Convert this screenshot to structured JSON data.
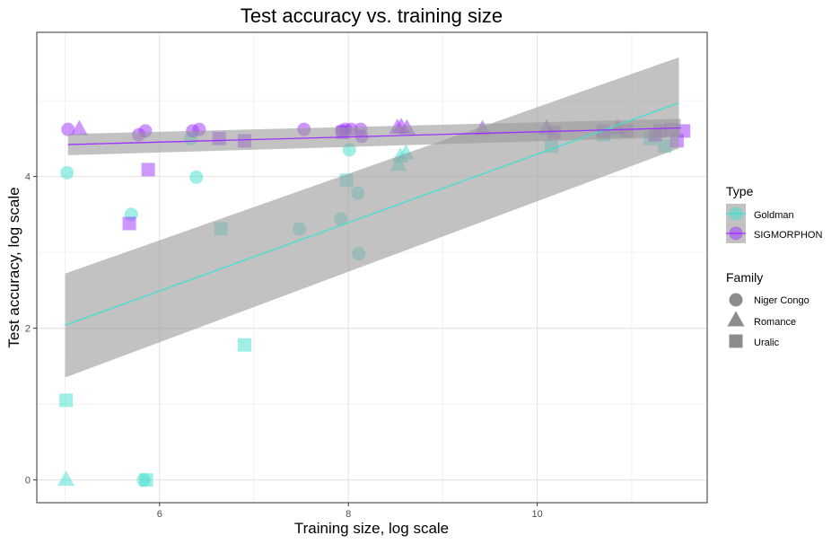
{
  "chart_data": {
    "type": "scatter",
    "title": "Test accuracy vs. training size",
    "xlabel": "Training size, log scale",
    "ylabel": "Test accuracy, log scale",
    "xlim": [
      4.7,
      11.8
    ],
    "ylim": [
      -0.3,
      5.9
    ],
    "x_ticks": [
      6,
      8,
      10
    ],
    "y_ticks": [
      0,
      2,
      4
    ],
    "grid": true,
    "legend": {
      "position": "right",
      "type_title": "Type",
      "type_entries": [
        {
          "name": "Goldman",
          "color": "#40E0D0"
        },
        {
          "name": "SIGMORPHON",
          "color": "#9B30FF"
        }
      ],
      "family_title": "Family",
      "family_entries": [
        {
          "name": "Niger Congo",
          "shape": "circle"
        },
        {
          "name": "Romance",
          "shape": "triangle"
        },
        {
          "name": "Uralic",
          "shape": "square"
        }
      ]
    },
    "series": [
      {
        "name": "Goldman",
        "color": "#40E0D0",
        "points": [
          {
            "x": 5.02,
            "y": 4.05,
            "family": "Niger Congo"
          },
          {
            "x": 5.7,
            "y": 3.5,
            "family": "Niger Congo"
          },
          {
            "x": 5.83,
            "y": 0.0,
            "family": "Niger Congo"
          },
          {
            "x": 6.33,
            "y": 4.5,
            "family": "Niger Congo"
          },
          {
            "x": 6.39,
            "y": 3.99,
            "family": "Niger Congo"
          },
          {
            "x": 7.48,
            "y": 3.31,
            "family": "Niger Congo"
          },
          {
            "x": 7.92,
            "y": 3.44,
            "family": "Niger Congo"
          },
          {
            "x": 8.01,
            "y": 4.35,
            "family": "Niger Congo"
          },
          {
            "x": 8.1,
            "y": 3.78,
            "family": "Niger Congo"
          },
          {
            "x": 8.11,
            "y": 2.98,
            "family": "Niger Congo"
          },
          {
            "x": 5.01,
            "y": 0.0,
            "family": "Romance"
          },
          {
            "x": 8.53,
            "y": 4.15,
            "family": "Romance"
          },
          {
            "x": 8.55,
            "y": 4.26,
            "family": "Romance"
          },
          {
            "x": 8.61,
            "y": 4.3,
            "family": "Romance"
          },
          {
            "x": 10.85,
            "y": 4.6,
            "family": "Romance"
          },
          {
            "x": 5.01,
            "y": 1.05,
            "family": "Uralic"
          },
          {
            "x": 5.86,
            "y": 0.0,
            "family": "Uralic"
          },
          {
            "x": 6.65,
            "y": 3.31,
            "family": "Uralic"
          },
          {
            "x": 6.9,
            "y": 1.78,
            "family": "Uralic"
          },
          {
            "x": 7.98,
            "y": 3.95,
            "family": "Uralic"
          },
          {
            "x": 10.15,
            "y": 4.4,
            "family": "Uralic"
          },
          {
            "x": 10.7,
            "y": 4.55,
            "family": "Uralic"
          },
          {
            "x": 11.2,
            "y": 4.5,
            "family": "Uralic"
          },
          {
            "x": 11.35,
            "y": 4.4,
            "family": "Uralic"
          }
        ],
        "fit": {
          "x": [
            5.0,
            11.5
          ],
          "y": [
            2.04,
            4.97
          ],
          "ci_low": [
            1.35,
            4.37
          ],
          "ci_high": [
            2.72,
            5.57
          ]
        }
      },
      {
        "name": "SIGMORPHON",
        "color": "#9B30FF",
        "points": [
          {
            "x": 5.03,
            "y": 4.62,
            "family": "Niger Congo"
          },
          {
            "x": 5.78,
            "y": 4.55,
            "family": "Niger Congo"
          },
          {
            "x": 5.85,
            "y": 4.6,
            "family": "Niger Congo"
          },
          {
            "x": 6.35,
            "y": 4.6,
            "family": "Niger Congo"
          },
          {
            "x": 6.42,
            "y": 4.62,
            "family": "Niger Congo"
          },
          {
            "x": 7.53,
            "y": 4.62,
            "family": "Niger Congo"
          },
          {
            "x": 7.93,
            "y": 4.6,
            "family": "Niger Congo"
          },
          {
            "x": 7.97,
            "y": 4.62,
            "family": "Niger Congo"
          },
          {
            "x": 8.03,
            "y": 4.62,
            "family": "Niger Congo"
          },
          {
            "x": 8.13,
            "y": 4.62,
            "family": "Niger Congo"
          },
          {
            "x": 8.14,
            "y": 4.53,
            "family": "Niger Congo"
          },
          {
            "x": 5.15,
            "y": 4.62,
            "family": "Romance"
          },
          {
            "x": 8.52,
            "y": 4.64,
            "family": "Romance"
          },
          {
            "x": 8.56,
            "y": 4.65,
            "family": "Romance"
          },
          {
            "x": 8.62,
            "y": 4.63,
            "family": "Romance"
          },
          {
            "x": 9.42,
            "y": 4.62,
            "family": "Romance"
          },
          {
            "x": 10.1,
            "y": 4.63,
            "family": "Romance"
          },
          {
            "x": 10.85,
            "y": 4.63,
            "family": "Romance"
          },
          {
            "x": 5.68,
            "y": 3.38,
            "family": "Uralic"
          },
          {
            "x": 5.88,
            "y": 4.09,
            "family": "Uralic"
          },
          {
            "x": 6.63,
            "y": 4.5,
            "family": "Uralic"
          },
          {
            "x": 6.9,
            "y": 4.47,
            "family": "Uralic"
          },
          {
            "x": 7.94,
            "y": 4.58,
            "family": "Uralic"
          },
          {
            "x": 10.18,
            "y": 4.58,
            "family": "Uralic"
          },
          {
            "x": 10.7,
            "y": 4.6,
            "family": "Uralic"
          },
          {
            "x": 10.95,
            "y": 4.6,
            "family": "Uralic"
          },
          {
            "x": 11.25,
            "y": 4.55,
            "family": "Uralic"
          },
          {
            "x": 11.3,
            "y": 4.6,
            "family": "Uralic"
          },
          {
            "x": 11.42,
            "y": 4.62,
            "family": "Uralic"
          },
          {
            "x": 11.48,
            "y": 4.47,
            "family": "Uralic"
          },
          {
            "x": 11.55,
            "y": 4.6,
            "family": "Uralic"
          }
        ],
        "fit": {
          "x": [
            5.03,
            11.52
          ],
          "y": [
            4.42,
            4.64
          ],
          "ci_low": [
            4.28,
            4.52
          ],
          "ci_high": [
            4.56,
            4.76
          ]
        }
      }
    ]
  }
}
